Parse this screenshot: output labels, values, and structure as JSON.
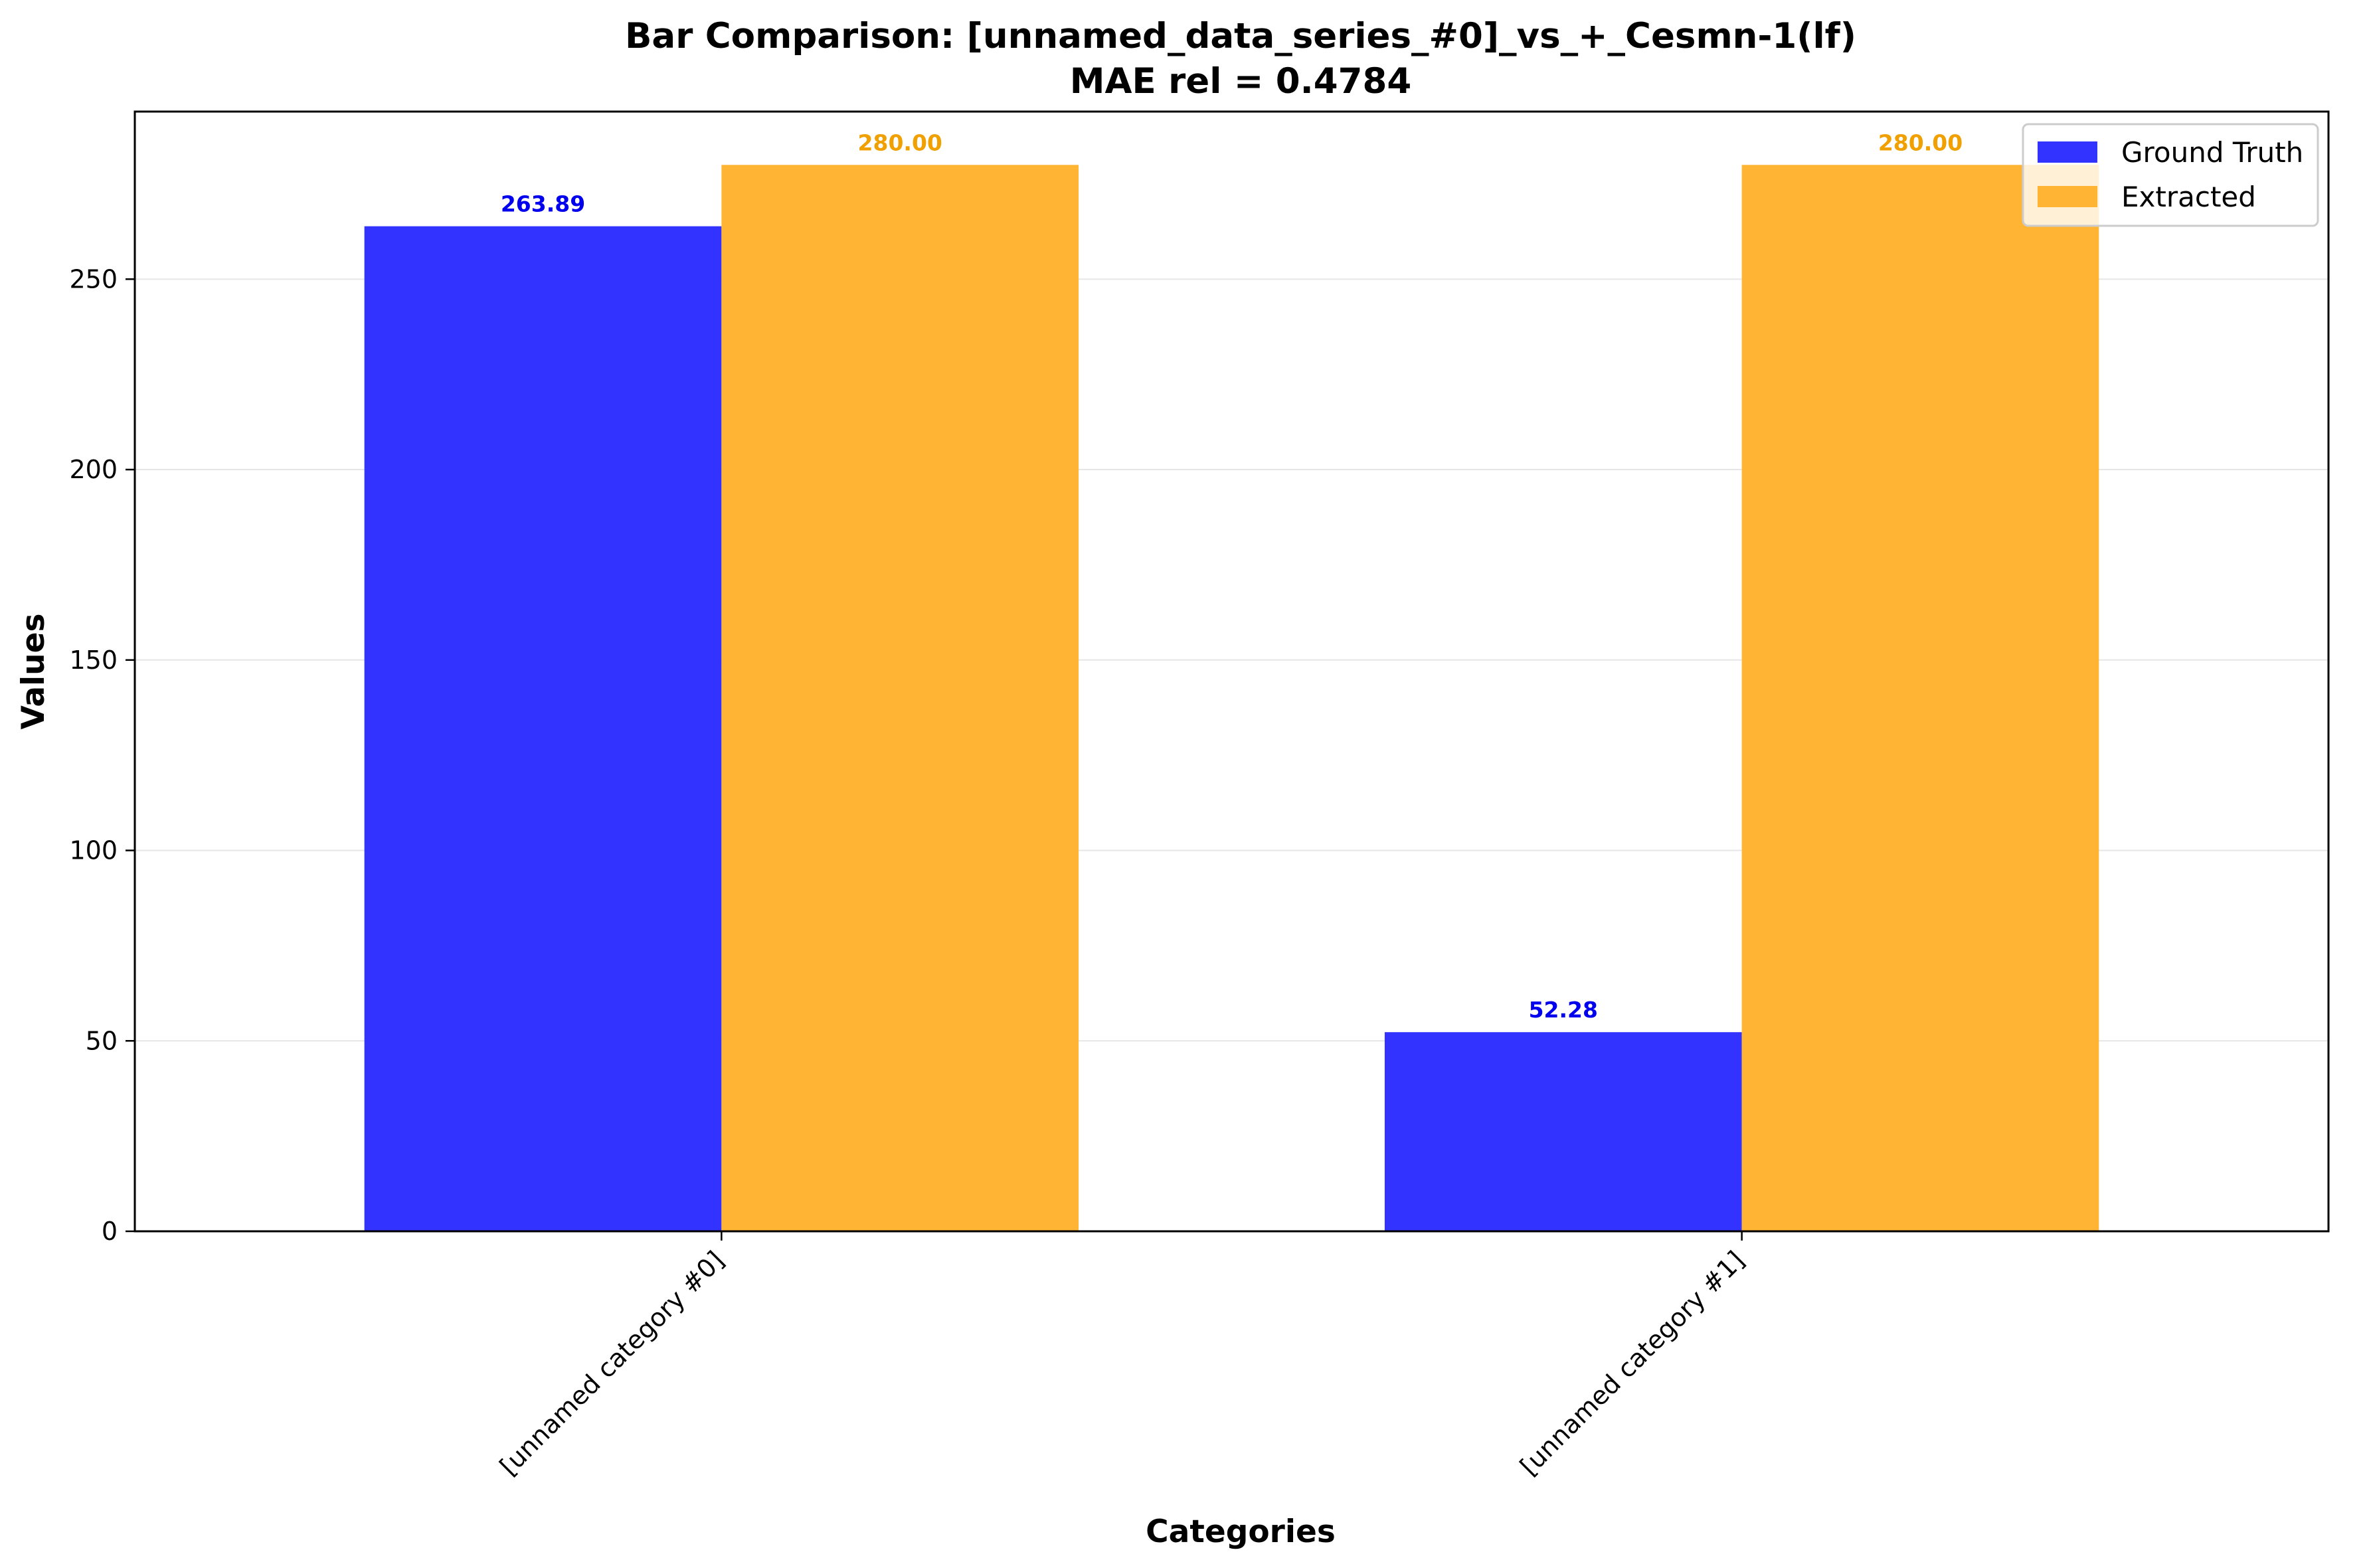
{
  "chart_data": {
    "type": "bar",
    "title": "Bar Comparison: [unnamed_data_series_#0]_vs_+_Cesmn-1(lf)",
    "subtitle": "MAE rel = 0.4784",
    "xlabel": "Categories",
    "ylabel": "Values",
    "categories": [
      "[unnamed category #0]",
      "[unnamed category #1]"
    ],
    "series": [
      {
        "name": "Ground Truth",
        "values": [
          263.89,
          52.28
        ],
        "labels": [
          "263.89",
          "52.28"
        ],
        "color": "#3333ff",
        "label_color": "#0000ee"
      },
      {
        "name": "Extracted",
        "values": [
          280.0,
          280.0
        ],
        "labels": [
          "280.00",
          "280.00"
        ],
        "color": "#ffb533",
        "label_color": "#f0a000"
      }
    ],
    "ylim": [
      0,
      294
    ],
    "yticks": [
      0,
      50,
      100,
      150,
      200,
      250
    ],
    "grid": "horizontal",
    "legend_position": "top-right"
  }
}
